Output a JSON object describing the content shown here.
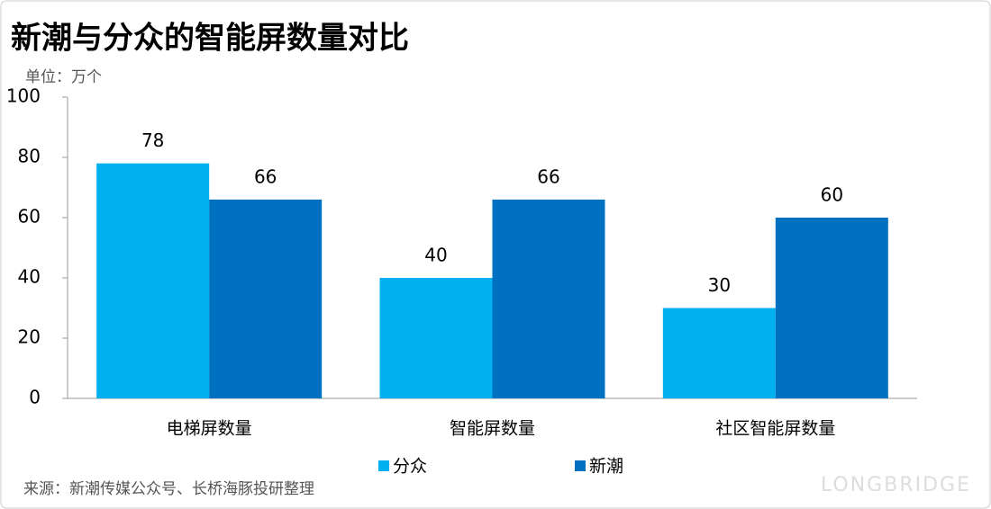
{
  "chart_data": {
    "type": "bar",
    "title": "新潮与分众的智能屏数量对比",
    "unit": "单位：万个",
    "categories": [
      "电梯屏数量",
      "智能屏数量",
      "社区智能屏数量"
    ],
    "series": [
      {
        "name": "分众",
        "color": "#00b0f0",
        "values": [
          78,
          40,
          30
        ]
      },
      {
        "name": "新潮",
        "color": "#0070c0",
        "values": [
          66,
          66,
          60
        ]
      }
    ],
    "ylim": [
      0,
      100
    ],
    "yticks": [
      0,
      20,
      40,
      60,
      80,
      100
    ],
    "grid": false,
    "source": "来源：新潮传媒公众号、长桥海豚投研整理",
    "watermark": "LONGBRIDGE"
  }
}
